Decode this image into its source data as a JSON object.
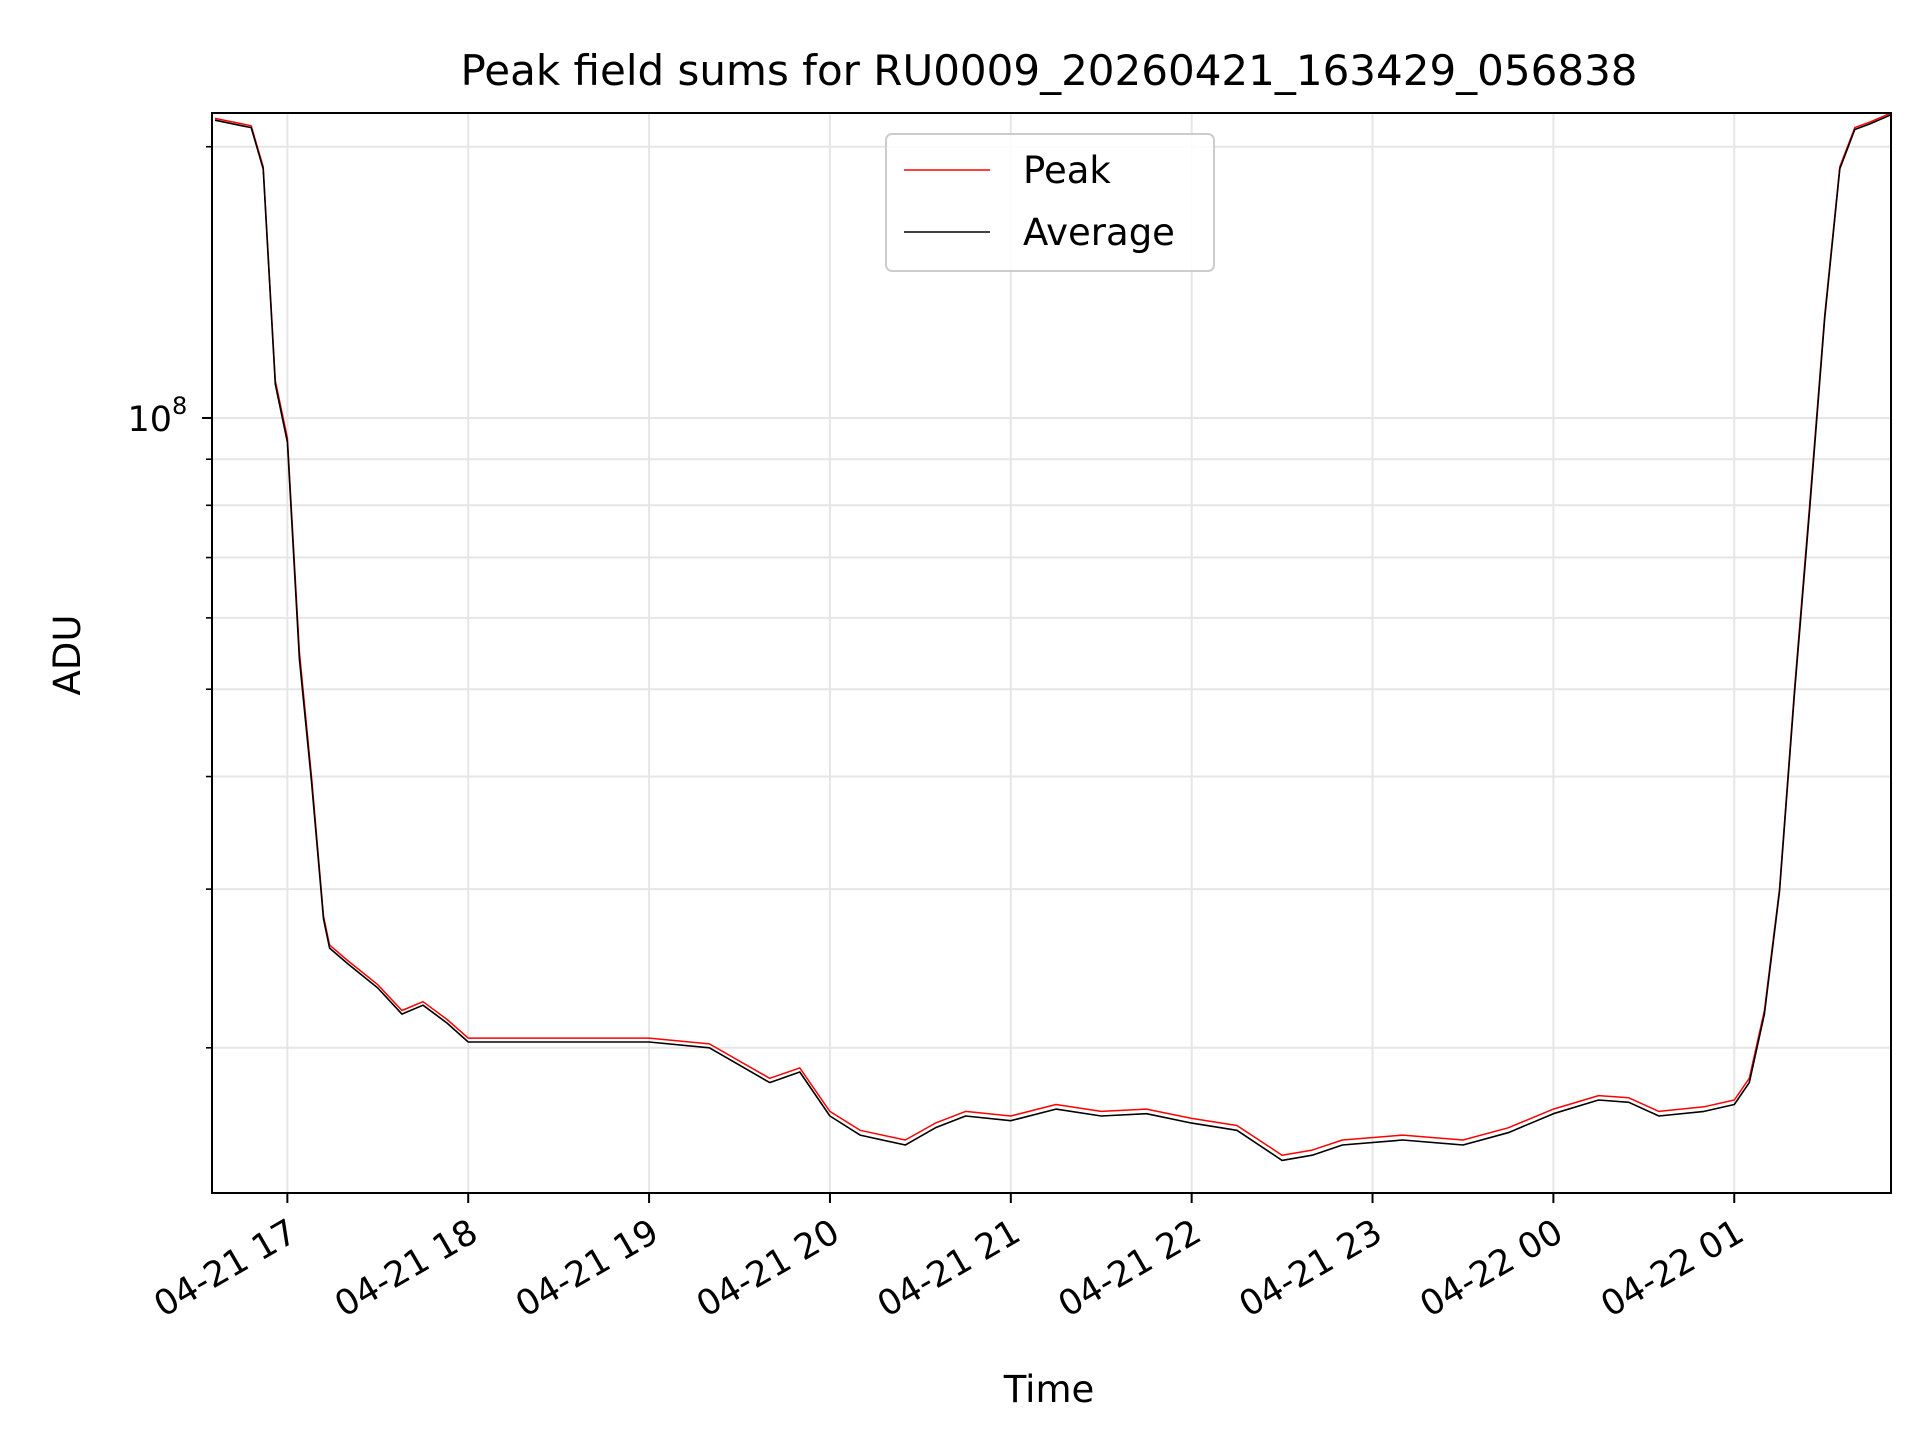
{
  "chart_data": {
    "type": "line",
    "title": "Peak field sums for RU0009_20260421_163429_056838",
    "xlabel": "Time",
    "ylabel": "ADU",
    "y_scale": "log",
    "ylim": [
      13800000,
      218000000
    ],
    "xlim": [
      "2026-04-21 16:35",
      "2026-04-22 01:52"
    ],
    "x_ticks": [
      "2026-04-21 17:00",
      "2026-04-21 18:00",
      "2026-04-21 19:00",
      "2026-04-21 20:00",
      "2026-04-21 21:00",
      "2026-04-21 22:00",
      "2026-04-21 23:00",
      "2026-04-22 00:00",
      "2026-04-22 01:00"
    ],
    "x_tick_labels": [
      "04-21 17",
      "04-21 18",
      "04-21 19",
      "04-21 20",
      "04-21 21",
      "04-21 22",
      "04-21 23",
      "04-22 00",
      "04-22 01"
    ],
    "y_tick_label": "10",
    "y_tick_label_exp": "8",
    "grid": true,
    "legend_position": "upper-center",
    "series": [
      {
        "name": "Peak",
        "color": "#ff0000",
        "x": [
          "2026-04-21 16:36",
          "2026-04-21 16:45",
          "2026-04-21 16:48",
          "2026-04-21 16:52",
          "2026-04-21 16:56",
          "2026-04-21 17:00",
          "2026-04-21 17:04",
          "2026-04-21 17:08",
          "2026-04-21 17:12",
          "2026-04-21 17:14",
          "2026-04-21 17:20",
          "2026-04-21 17:30",
          "2026-04-21 17:38",
          "2026-04-21 17:45",
          "2026-04-21 17:53",
          "2026-04-21 18:00",
          "2026-04-21 18:10",
          "2026-04-21 18:30",
          "2026-04-21 19:00",
          "2026-04-21 19:20",
          "2026-04-21 19:40",
          "2026-04-21 19:50",
          "2026-04-21 20:00",
          "2026-04-21 20:10",
          "2026-04-21 20:25",
          "2026-04-21 20:35",
          "2026-04-21 20:45",
          "2026-04-21 21:00",
          "2026-04-21 21:15",
          "2026-04-21 21:30",
          "2026-04-21 21:45",
          "2026-04-21 22:00",
          "2026-04-21 22:15",
          "2026-04-21 22:30",
          "2026-04-21 22:40",
          "2026-04-21 22:50",
          "2026-04-21 23:10",
          "2026-04-21 23:30",
          "2026-04-21 23:45",
          "2026-04-22 00:00",
          "2026-04-22 00:15",
          "2026-04-22 00:25",
          "2026-04-22 00:35",
          "2026-04-22 00:50",
          "2026-04-22 01:00",
          "2026-04-22 01:05",
          "2026-04-22 01:10",
          "2026-04-22 01:15",
          "2026-04-22 01:20",
          "2026-04-22 01:25",
          "2026-04-22 01:30",
          "2026-04-22 01:35",
          "2026-04-22 01:40",
          "2026-04-22 01:45",
          "2026-04-22 01:52"
        ],
        "y": [
          215000000,
          212000000,
          211000000,
          190000000,
          110000000,
          95000000,
          55000000,
          40000000,
          28000000,
          26000000,
          25000000,
          23500000,
          22000000,
          22500000,
          21500000,
          20500000,
          20500000,
          20500000,
          20500000,
          20200000,
          18500000,
          19000000,
          17000000,
          16200000,
          15800000,
          16500000,
          17000000,
          16800000,
          17300000,
          17000000,
          17100000,
          16700000,
          16400000,
          15200000,
          15400000,
          15800000,
          16000000,
          15800000,
          16300000,
          17100000,
          17700000,
          17600000,
          17000000,
          17200000,
          17500000,
          18500000,
          22000000,
          30000000,
          50000000,
          80000000,
          130000000,
          190000000,
          210000000,
          213000000,
          218000000
        ]
      },
      {
        "name": "Average",
        "color": "#000000",
        "x": [
          "2026-04-21 16:36",
          "2026-04-21 16:45",
          "2026-04-21 16:48",
          "2026-04-21 16:52",
          "2026-04-21 16:56",
          "2026-04-21 17:00",
          "2026-04-21 17:04",
          "2026-04-21 17:08",
          "2026-04-21 17:12",
          "2026-04-21 17:14",
          "2026-04-21 17:20",
          "2026-04-21 17:30",
          "2026-04-21 17:38",
          "2026-04-21 17:45",
          "2026-04-21 17:53",
          "2026-04-21 18:00",
          "2026-04-21 18:10",
          "2026-04-21 18:30",
          "2026-04-21 19:00",
          "2026-04-21 19:20",
          "2026-04-21 19:40",
          "2026-04-21 19:50",
          "2026-04-21 20:00",
          "2026-04-21 20:10",
          "2026-04-21 20:25",
          "2026-04-21 20:35",
          "2026-04-21 20:45",
          "2026-04-21 21:00",
          "2026-04-21 21:15",
          "2026-04-21 21:30",
          "2026-04-21 21:45",
          "2026-04-21 22:00",
          "2026-04-21 22:15",
          "2026-04-21 22:30",
          "2026-04-21 22:40",
          "2026-04-21 22:50",
          "2026-04-21 23:10",
          "2026-04-21 23:30",
          "2026-04-21 23:45",
          "2026-04-22 00:00",
          "2026-04-22 00:15",
          "2026-04-22 00:25",
          "2026-04-22 00:35",
          "2026-04-22 00:50",
          "2026-04-22 01:00",
          "2026-04-22 01:05",
          "2026-04-22 01:10",
          "2026-04-22 01:15",
          "2026-04-22 01:20",
          "2026-04-22 01:25",
          "2026-04-22 01:30",
          "2026-04-22 01:35",
          "2026-04-22 01:40",
          "2026-04-22 01:45",
          "2026-04-22 01:52"
        ],
        "y": [
          214000000,
          211000000,
          210000000,
          189000000,
          109000000,
          94000000,
          54000000,
          39500000,
          27800000,
          25800000,
          24800000,
          23300000,
          21800000,
          22300000,
          21300000,
          20300000,
          20300000,
          20300000,
          20300000,
          20000000,
          18300000,
          18800000,
          16800000,
          16000000,
          15600000,
          16300000,
          16800000,
          16600000,
          17100000,
          16800000,
          16900000,
          16500000,
          16200000,
          15000000,
          15200000,
          15600000,
          15800000,
          15600000,
          16100000,
          16900000,
          17500000,
          17400000,
          16800000,
          17000000,
          17300000,
          18300000,
          21800000,
          29800000,
          49500000,
          79000000,
          129000000,
          189000000,
          209000000,
          212000000,
          217000000
        ]
      }
    ]
  }
}
